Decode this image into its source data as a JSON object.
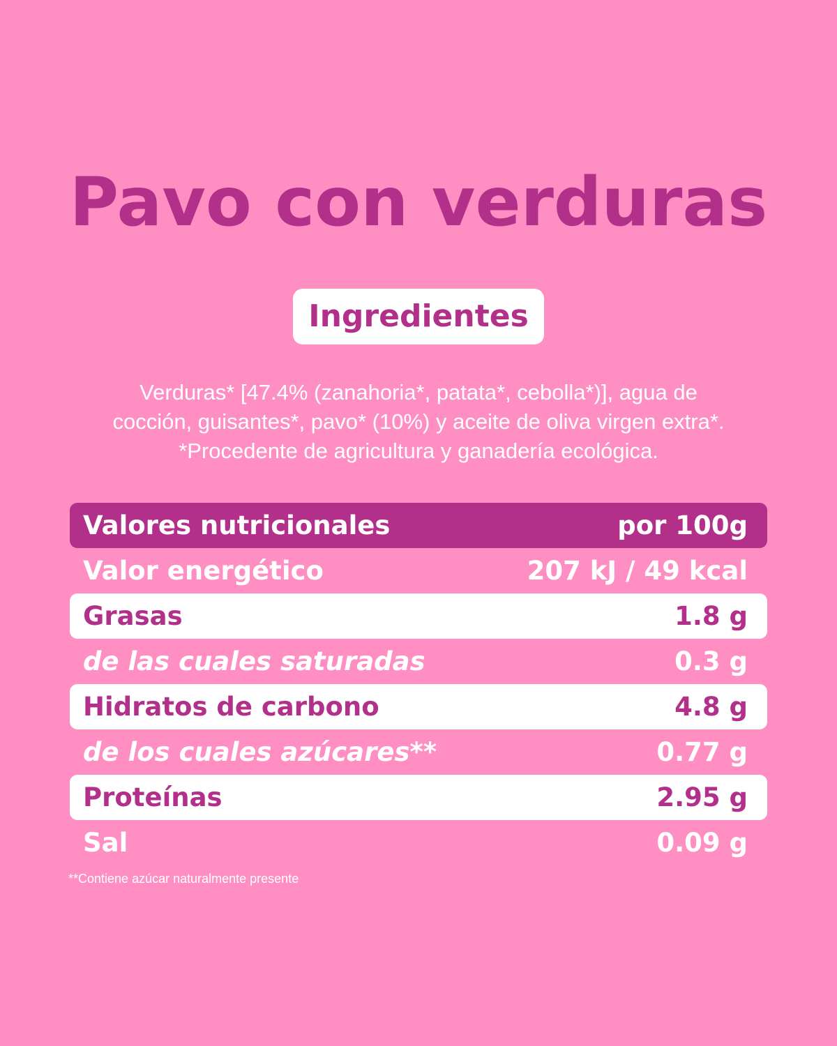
{
  "product": {
    "title": "Pavo con verduras"
  },
  "ingredients": {
    "heading": "Ingredientes",
    "lines": [
      "Verduras* [47.4% (zanahoria*, patata*, cebolla*)], agua de",
      "cocción, guisantes*, pavo* (10%) y aceite de oliva virgen extra*.",
      "*Procedente de agricultura y ganadería ecológica."
    ]
  },
  "nutrition": {
    "header": {
      "label": "Valores nutricionales",
      "value": "por 100g"
    },
    "rows": [
      {
        "label": "Valor energético",
        "value": "207 kJ / 49 kcal"
      },
      {
        "label": "Grasas",
        "value": "1.8 g"
      },
      {
        "label": "de las cuales saturadas",
        "value": "0.3 g"
      },
      {
        "label": "Hidratos de carbono",
        "value": "4.8 g"
      },
      {
        "label": "de los cuales azúcares**",
        "value": "0.77 g"
      },
      {
        "label": "Proteínas",
        "value": "2.95 g"
      },
      {
        "label": "Sal",
        "value": "0.09 g"
      }
    ],
    "footnote": "**Contiene azúcar naturalmente presente"
  },
  "colors": {
    "background": "#ff8ec3",
    "accent": "#b3308a",
    "white": "#ffffff"
  }
}
